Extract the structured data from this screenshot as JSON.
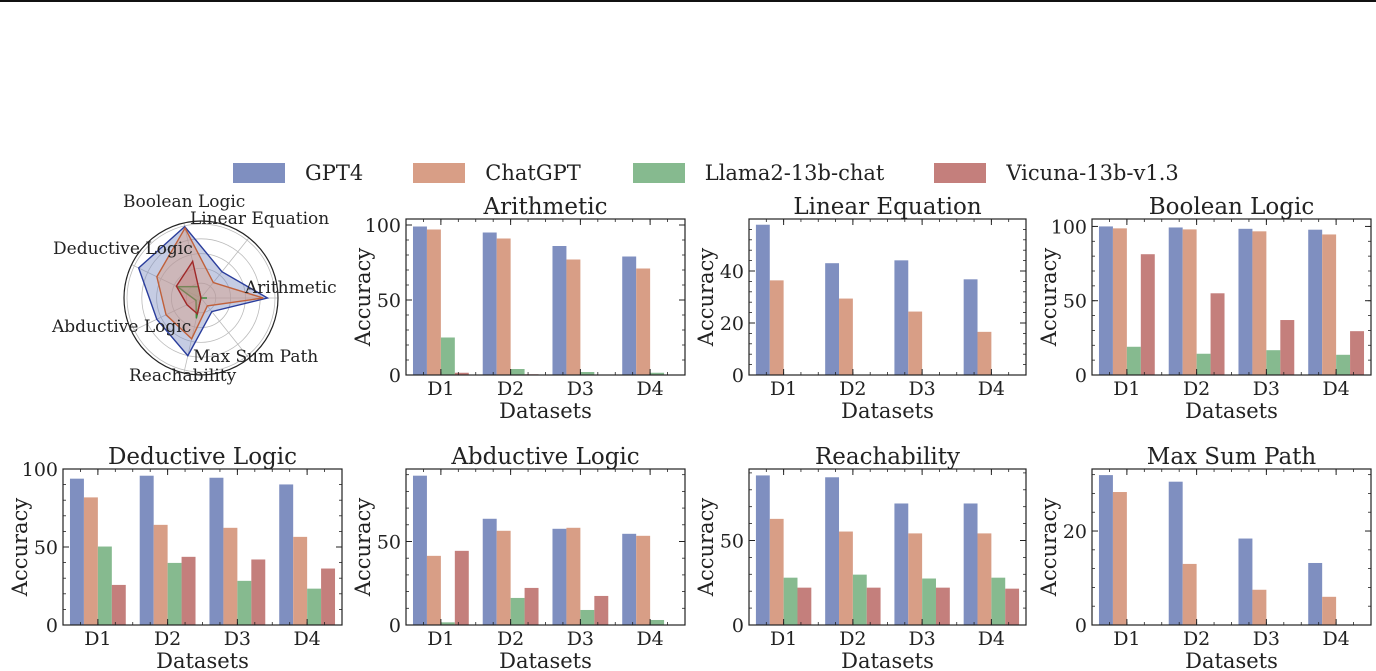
{
  "colors": {
    "GPT4": "#7f8fc0",
    "ChatGPT": "#d89e86",
    "Llama2-13b-chat": "#86ba8f",
    "Vicuna-13b-v1.3": "#c47f7c"
  },
  "legend": {
    "placement": "top",
    "items": [
      "GPT4",
      "ChatGPT",
      "Llama2-13b-chat",
      "Vicuna-13b-v1.3"
    ]
  },
  "chart_data": [
    {
      "type": "radar",
      "title": "",
      "axes": [
        "Arithmetic",
        "Linear Equation",
        "Boolean Logic",
        "Deductive Logic",
        "Abductive Logic",
        "Reachability",
        "Max Sum Path"
      ],
      "range": [
        0,
        100
      ],
      "series": [
        {
          "name": "GPT4",
          "values": [
            89.8,
            45.4,
            98.9,
            93.5,
            66.3,
            80.0,
            23.5
          ]
        },
        {
          "name": "ChatGPT",
          "values": [
            84.0,
            26.7,
            97.0,
            66.2,
            52.4,
            56.6,
            13.7
          ]
        },
        {
          "name": "Llama2-13b-chat",
          "values": [
            8.1,
            0,
            15.9,
            35.4,
            7.5,
            28.3,
            0
          ]
        },
        {
          "name": "Vicuna-13b-v1.3",
          "values": [
            0.6,
            0,
            50.7,
            36.9,
            21.0,
            22.0,
            0
          ]
        }
      ]
    },
    {
      "type": "bar",
      "title": "Arithmetic",
      "xlabel": "Datasets",
      "ylabel": "Accuracy",
      "categories": [
        "D1",
        "D2",
        "D3",
        "D4"
      ],
      "ylim": [
        0,
        104
      ],
      "yticks": [
        0,
        50,
        100
      ],
      "series": [
        {
          "name": "GPT4",
          "values": [
            99,
            95,
            86,
            79
          ]
        },
        {
          "name": "ChatGPT",
          "values": [
            97,
            91,
            77,
            71
          ]
        },
        {
          "name": "Llama2-13b-chat",
          "values": [
            25,
            4,
            2,
            1.5
          ]
        },
        {
          "name": "Vicuna-13b-v1.3",
          "values": [
            1.5,
            0.5,
            0.3,
            0
          ]
        }
      ]
    },
    {
      "type": "bar",
      "title": "Linear Equation",
      "xlabel": "Datasets",
      "ylabel": "Accuracy",
      "categories": [
        "D1",
        "D2",
        "D3",
        "D4"
      ],
      "ylim": [
        0,
        60
      ],
      "yticks": [
        0,
        20,
        40
      ],
      "series": [
        {
          "name": "GPT4",
          "values": [
            57.8,
            43,
            44.1,
            36.8
          ]
        },
        {
          "name": "ChatGPT",
          "values": [
            36.4,
            29.4,
            24.4,
            16.6
          ]
        },
        {
          "name": "Llama2-13b-chat",
          "values": [
            0,
            0,
            0,
            0
          ]
        },
        {
          "name": "Vicuna-13b-v1.3",
          "values": [
            0,
            0,
            0,
            0
          ]
        }
      ]
    },
    {
      "type": "bar",
      "title": "Boolean Logic",
      "xlabel": "Datasets",
      "ylabel": "Accuracy",
      "categories": [
        "D1",
        "D2",
        "D3",
        "D4"
      ],
      "ylim": [
        0,
        105
      ],
      "yticks": [
        0,
        50,
        100
      ],
      "series": [
        {
          "name": "GPT4",
          "values": [
            100,
            99.3,
            98.4,
            97.8
          ]
        },
        {
          "name": "ChatGPT",
          "values": [
            98.7,
            98,
            96.7,
            94.6
          ]
        },
        {
          "name": "Llama2-13b-chat",
          "values": [
            19,
            14.3,
            16.7,
            13.6
          ]
        },
        {
          "name": "Vicuna-13b-v1.3",
          "values": [
            81.3,
            55,
            37,
            29.5
          ]
        }
      ]
    },
    {
      "type": "bar",
      "title": "Deductive Logic",
      "xlabel": "Datasets",
      "ylabel": "Accuracy",
      "categories": [
        "D1",
        "D2",
        "D3",
        "D4"
      ],
      "ylim": [
        0,
        100
      ],
      "yticks": [
        0,
        50,
        100
      ],
      "series": [
        {
          "name": "GPT4",
          "values": [
            93.8,
            95.7,
            94.4,
            90.1
          ]
        },
        {
          "name": "ChatGPT",
          "values": [
            81.8,
            64.2,
            62.3,
            56.5
          ]
        },
        {
          "name": "Llama2-13b-chat",
          "values": [
            50.3,
            39.8,
            28.3,
            23.3
          ]
        },
        {
          "name": "Vicuna-13b-v1.3",
          "values": [
            25.7,
            43.7,
            42,
            36.2
          ]
        }
      ]
    },
    {
      "type": "bar",
      "title": "Abductive Logic",
      "xlabel": "Datasets",
      "ylabel": "Accuracy",
      "categories": [
        "D1",
        "D2",
        "D3",
        "D4"
      ],
      "ylim": [
        0,
        93.4
      ],
      "yticks": [
        0,
        50
      ],
      "series": [
        {
          "name": "GPT4",
          "values": [
            89.4,
            63.6,
            57.6,
            54.6
          ]
        },
        {
          "name": "ChatGPT",
          "values": [
            41.4,
            56.4,
            58.2,
            53.4
          ]
        },
        {
          "name": "Llama2-13b-chat",
          "values": [
            1.6,
            16.2,
            9,
            3
          ]
        },
        {
          "name": "Vicuna-13b-v1.3",
          "values": [
            44.4,
            22.2,
            17.4,
            0
          ]
        }
      ]
    },
    {
      "type": "bar",
      "title": "Reachability",
      "xlabel": "Datasets",
      "ylabel": "Accuracy",
      "categories": [
        "D1",
        "D2",
        "D3",
        "D4"
      ],
      "ylim": [
        0,
        92.3
      ],
      "yticks": [
        0,
        50
      ],
      "series": [
        {
          "name": "GPT4",
          "values": [
            88.5,
            87.4,
            71.9,
            71.9
          ]
        },
        {
          "name": "ChatGPT",
          "values": [
            62.8,
            55.3,
            54.2,
            54.2
          ]
        },
        {
          "name": "Llama2-13b-chat",
          "values": [
            28,
            29.8,
            27.5,
            28
          ]
        },
        {
          "name": "Vicuna-13b-v1.3",
          "values": [
            22.1,
            22.1,
            22.1,
            21.5
          ]
        }
      ]
    },
    {
      "type": "bar",
      "title": "Max Sum Path",
      "xlabel": "Datasets",
      "ylabel": "Accuracy",
      "categories": [
        "D1",
        "D2",
        "D3",
        "D4"
      ],
      "ylim": [
        0,
        33.2
      ],
      "yticks": [
        0,
        20
      ],
      "series": [
        {
          "name": "GPT4",
          "values": [
            31.9,
            30.5,
            18.4,
            13.2
          ]
        },
        {
          "name": "ChatGPT",
          "values": [
            28.3,
            13,
            7.5,
            6
          ]
        },
        {
          "name": "Llama2-13b-chat",
          "values": [
            0,
            0,
            0,
            0
          ]
        },
        {
          "name": "Vicuna-13b-v1.3",
          "values": [
            0,
            0,
            0,
            0
          ]
        }
      ]
    }
  ]
}
